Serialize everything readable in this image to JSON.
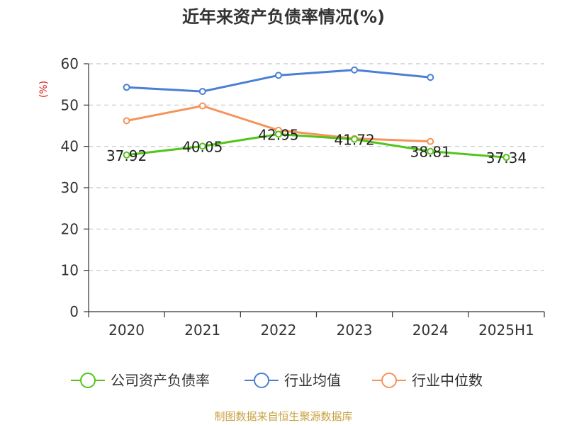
{
  "chart_data": {
    "type": "line",
    "title": "近年来资产负债率情况(%)",
    "ylabel": "(%)",
    "xlabel": "",
    "categories": [
      "2020",
      "2021",
      "2022",
      "2023",
      "2024",
      "2025H1"
    ],
    "ylim": [
      0,
      60
    ],
    "yticks": [
      0,
      10,
      20,
      30,
      40,
      50,
      60
    ],
    "grid": true,
    "legend_position": "bottom",
    "series": [
      {
        "name": "公司资产负债率",
        "color": "#52c41a",
        "values": [
          37.92,
          40.05,
          42.95,
          41.72,
          38.81,
          37.34
        ],
        "labels": [
          "37.92",
          "40.05",
          "42.95",
          "41.72",
          "38.81",
          "37.34"
        ]
      },
      {
        "name": "行业均值",
        "color": "#4a7fd4",
        "values": [
          54.3,
          53.3,
          57.2,
          58.5,
          56.7,
          null
        ]
      },
      {
        "name": "行业中位数",
        "color": "#f5935a",
        "values": [
          46.2,
          49.8,
          43.9,
          41.9,
          41.2,
          null
        ]
      }
    ],
    "source": "制图数据来自恒生聚源数据库"
  }
}
